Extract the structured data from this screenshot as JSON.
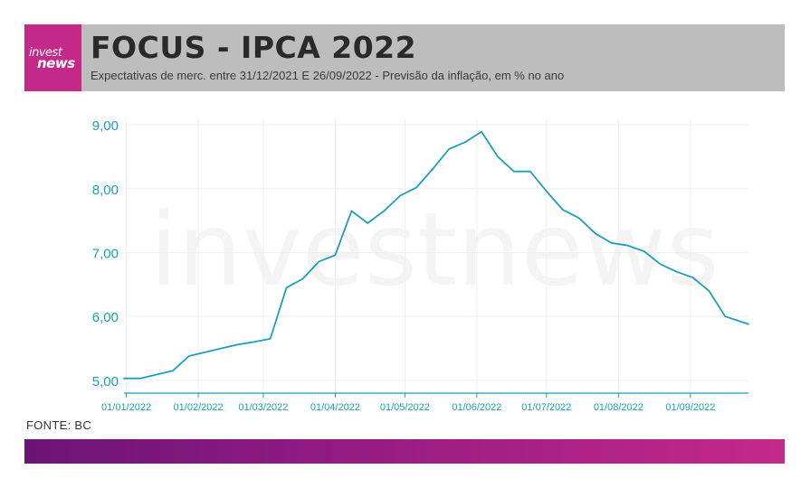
{
  "header": {
    "logo_line1": "invest",
    "logo_line2": "news",
    "title": "FOCUS - IPCA 2022",
    "subtitle": "Expectativas de merc. entre 31/12/2021 E 26/09/2022 - Previsão da inflação, em % no ano"
  },
  "watermark": "investnews",
  "source": "FONTE: BC",
  "colors": {
    "line": "#1ba0b5",
    "axis": "#1ba0b5",
    "logo_bg": "#c4298a",
    "header_bg": "#bdbdbd",
    "bar_start": "#6b1476",
    "bar_end": "#c4298a"
  },
  "chart_data": {
    "type": "line",
    "title": "FOCUS - IPCA 2022",
    "xlabel": "",
    "ylabel": "",
    "xlim": [
      "2021-12-31",
      "2022-09-26"
    ],
    "ylim": [
      4.8,
      9.1
    ],
    "yticks": [
      5.0,
      6.0,
      7.0,
      8.0,
      9.0
    ],
    "ytick_labels": [
      "5,00",
      "6,00",
      "7,00",
      "8,00",
      "9,00"
    ],
    "xticks": [
      "2022-01-01",
      "2022-02-01",
      "2022-03-01",
      "2022-04-01",
      "2022-05-01",
      "2022-06-01",
      "2022-07-01",
      "2022-08-01",
      "2022-09-01"
    ],
    "xtick_labels": [
      "01/01/2022",
      "01/02/2022",
      "01/03/2022",
      "01/04/2022",
      "01/05/2022",
      "01/06/2022",
      "01/07/2022",
      "01/08/2022",
      "01/09/2022"
    ],
    "grid": true,
    "series": [
      {
        "points": [
          [
            "2021-12-31",
            5.03
          ],
          [
            "2022-01-07",
            5.03
          ],
          [
            "2022-01-14",
            5.09
          ],
          [
            "2022-01-21",
            5.15
          ],
          [
            "2022-01-28",
            5.38
          ],
          [
            "2022-02-04",
            5.44
          ],
          [
            "2022-02-11",
            5.5
          ],
          [
            "2022-02-18",
            5.56
          ],
          [
            "2022-02-25",
            5.6
          ],
          [
            "2022-03-04",
            5.65
          ],
          [
            "2022-03-11",
            6.45
          ],
          [
            "2022-03-18",
            6.59
          ],
          [
            "2022-03-25",
            6.86
          ],
          [
            "2022-04-01",
            6.96
          ],
          [
            "2022-04-08",
            7.65
          ],
          [
            "2022-04-15",
            7.46
          ],
          [
            "2022-04-22",
            7.65
          ],
          [
            "2022-04-29",
            7.89
          ],
          [
            "2022-05-06",
            8.02
          ],
          [
            "2022-05-13",
            8.31
          ],
          [
            "2022-05-20",
            8.62
          ],
          [
            "2022-05-27",
            8.73
          ],
          [
            "2022-06-03",
            8.89
          ],
          [
            "2022-06-10",
            8.5
          ],
          [
            "2022-06-17",
            8.27
          ],
          [
            "2022-06-24",
            8.27
          ],
          [
            "2022-07-01",
            7.96
          ],
          [
            "2022-07-08",
            7.67
          ],
          [
            "2022-07-15",
            7.54
          ],
          [
            "2022-07-22",
            7.3
          ],
          [
            "2022-07-29",
            7.15
          ],
          [
            "2022-08-05",
            7.11
          ],
          [
            "2022-08-12",
            7.02
          ],
          [
            "2022-08-19",
            6.82
          ],
          [
            "2022-08-26",
            6.7
          ],
          [
            "2022-09-02",
            6.61
          ],
          [
            "2022-09-09",
            6.4
          ],
          [
            "2022-09-16",
            6.0
          ],
          [
            "2022-09-26",
            5.88
          ]
        ]
      }
    ]
  }
}
